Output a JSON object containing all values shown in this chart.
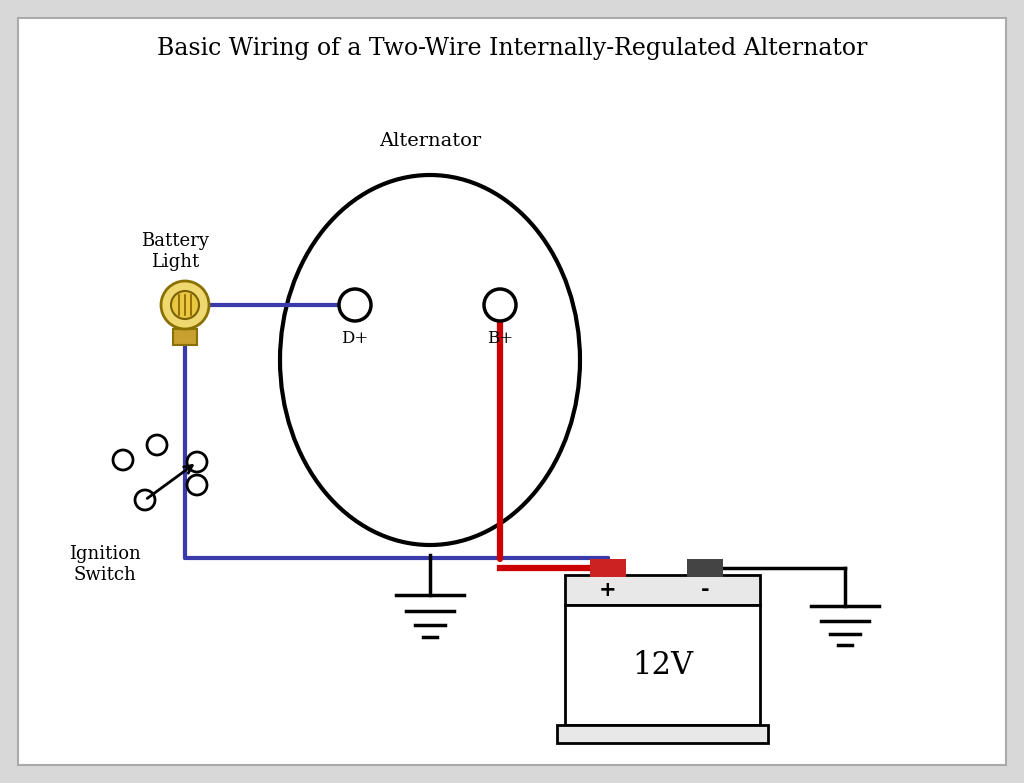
{
  "title": "Basic Wiring of a Two-Wire Internally-Regulated Alternator",
  "bg_color": "#d8d8d8",
  "inner_bg": "#ffffff",
  "wire_blue": "#3a3aaa",
  "wire_red": "#cc0000",
  "wire_black": "#111111",
  "alt_label": "Alternator",
  "dp_label": "D+",
  "bp_label": "B+",
  "battery_label": "12V",
  "battery_pos_label": "+",
  "battery_neg_label": "-",
  "ignition_label": "Ignition\nSwitch",
  "battery_light_label": "Battery\nLight"
}
